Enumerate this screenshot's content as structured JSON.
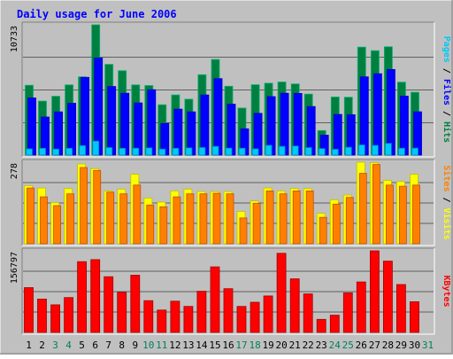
{
  "chart_data": {
    "type": "bar",
    "title": "Daily usage for June 2006",
    "days": [
      "1",
      "2",
      "3",
      "4",
      "5",
      "6",
      "7",
      "8",
      "9",
      "10",
      "11",
      "12",
      "13",
      "14",
      "15",
      "16",
      "17",
      "18",
      "19",
      "20",
      "21",
      "22",
      "23",
      "24",
      "25",
      "26",
      "27",
      "28",
      "29",
      "30",
      "31"
    ],
    "weekend_days": [
      "3",
      "4",
      "10",
      "11",
      "17",
      "18",
      "24",
      "25",
      "31"
    ],
    "panels": [
      {
        "y_max_label": "10733",
        "y_max": 10733,
        "right_label_parts": [
          {
            "text": "Pages",
            "color": "#00c8f8"
          },
          {
            "text": " / ",
            "color": "#000000"
          },
          {
            "text": "Files",
            "color": "#0000ff"
          },
          {
            "text": " / ",
            "color": "#000000"
          },
          {
            "text": "Hits",
            "color": "#008040"
          }
        ],
        "series": [
          {
            "name": "Hits",
            "color": "#008040",
            "edge": "#00b070",
            "values": [
              5750,
              4450,
              4850,
              5780,
              6450,
              10733,
              7480,
              6950,
              5780,
              5730,
              4150,
              4960,
              4610,
              6620,
              7880,
              5670,
              3880,
              5800,
              5920,
              6020,
              5860,
              5020,
              2020,
              4790,
              4770,
              8890,
              8600,
              8920,
              6010,
              5180,
              0
            ]
          },
          {
            "name": "Files",
            "color": "#0000ff",
            "edge": "#0000c0",
            "values": [
              4710,
              3140,
              3560,
              4270,
              6400,
              8000,
              5650,
              5100,
              4300,
              5390,
              2610,
              3790,
              3560,
              4960,
              6300,
              4200,
              2170,
              3440,
              4820,
              5100,
              5080,
              4000,
              1640,
              3350,
              3330,
              6450,
              6700,
              7050,
              4860,
              3570,
              0
            ]
          },
          {
            "name": "Pages",
            "color": "#00c8f8",
            "edge": "#0080c0",
            "values": [
              520,
              560,
              500,
              560,
              790,
              1150,
              620,
              560,
              570,
              600,
              500,
              560,
              600,
              630,
              720,
              580,
              570,
              520,
              810,
              720,
              750,
              620,
              540,
              480,
              650,
              840,
              800,
              970,
              570,
              580,
              0
            ]
          }
        ]
      },
      {
        "y_max_label": "278",
        "y_max": 278,
        "right_label_parts": [
          {
            "text": "Sites",
            "color": "#ff8000"
          },
          {
            "text": " / ",
            "color": "#000000"
          },
          {
            "text": "Visits",
            "color": "#ffff00"
          }
        ],
        "series": [
          {
            "name": "Visits",
            "color": "#ffff00",
            "edge": "#c0c000",
            "values": [
              198,
              190,
              140,
              188,
              272,
              256,
              180,
              186,
              237,
              156,
              142,
              180,
              186,
              178,
              178,
              178,
              110,
              146,
              190,
              180,
              188,
              188,
              104,
              150,
              166,
              278,
              276,
              216,
              212,
              237,
              0
            ]
          },
          {
            "name": "Sites",
            "color": "#ff8000",
            "edge": "#c05000",
            "values": [
              190,
              160,
              130,
              170,
              260,
              250,
              176,
              170,
              200,
              132,
              126,
              160,
              170,
              170,
              172,
              170,
              88,
              138,
              180,
              170,
              180,
              180,
              90,
              135,
              158,
              240,
              270,
              200,
              196,
              200,
              0
            ]
          }
        ]
      },
      {
        "y_max_label": "156797",
        "y_max": 156797,
        "right_label_parts": [
          {
            "text": "KBytes",
            "color": "#ff0000"
          }
        ],
        "series": [
          {
            "name": "KBytes",
            "color": "#ff0000",
            "edge": "#a00000",
            "values": [
              86000,
              64000,
              53000,
              67000,
              136000,
              140000,
              107000,
              77000,
              110000,
              61000,
              43000,
              60000,
              50000,
              79000,
              126000,
              84000,
              50000,
              58000,
              70000,
              152000,
              103000,
              74000,
              25000,
              33000,
              76000,
              97000,
              156797,
              137000,
              92000,
              59000,
              0
            ]
          }
        ]
      }
    ],
    "colors": {
      "background": "#ffffff",
      "frame": "#c0c0c0",
      "plot_background": "#c0c0c0",
      "title": "#0000ff",
      "gridline": "#000000",
      "weekday_label": "#000000",
      "weekend_label": "#00805c"
    }
  }
}
